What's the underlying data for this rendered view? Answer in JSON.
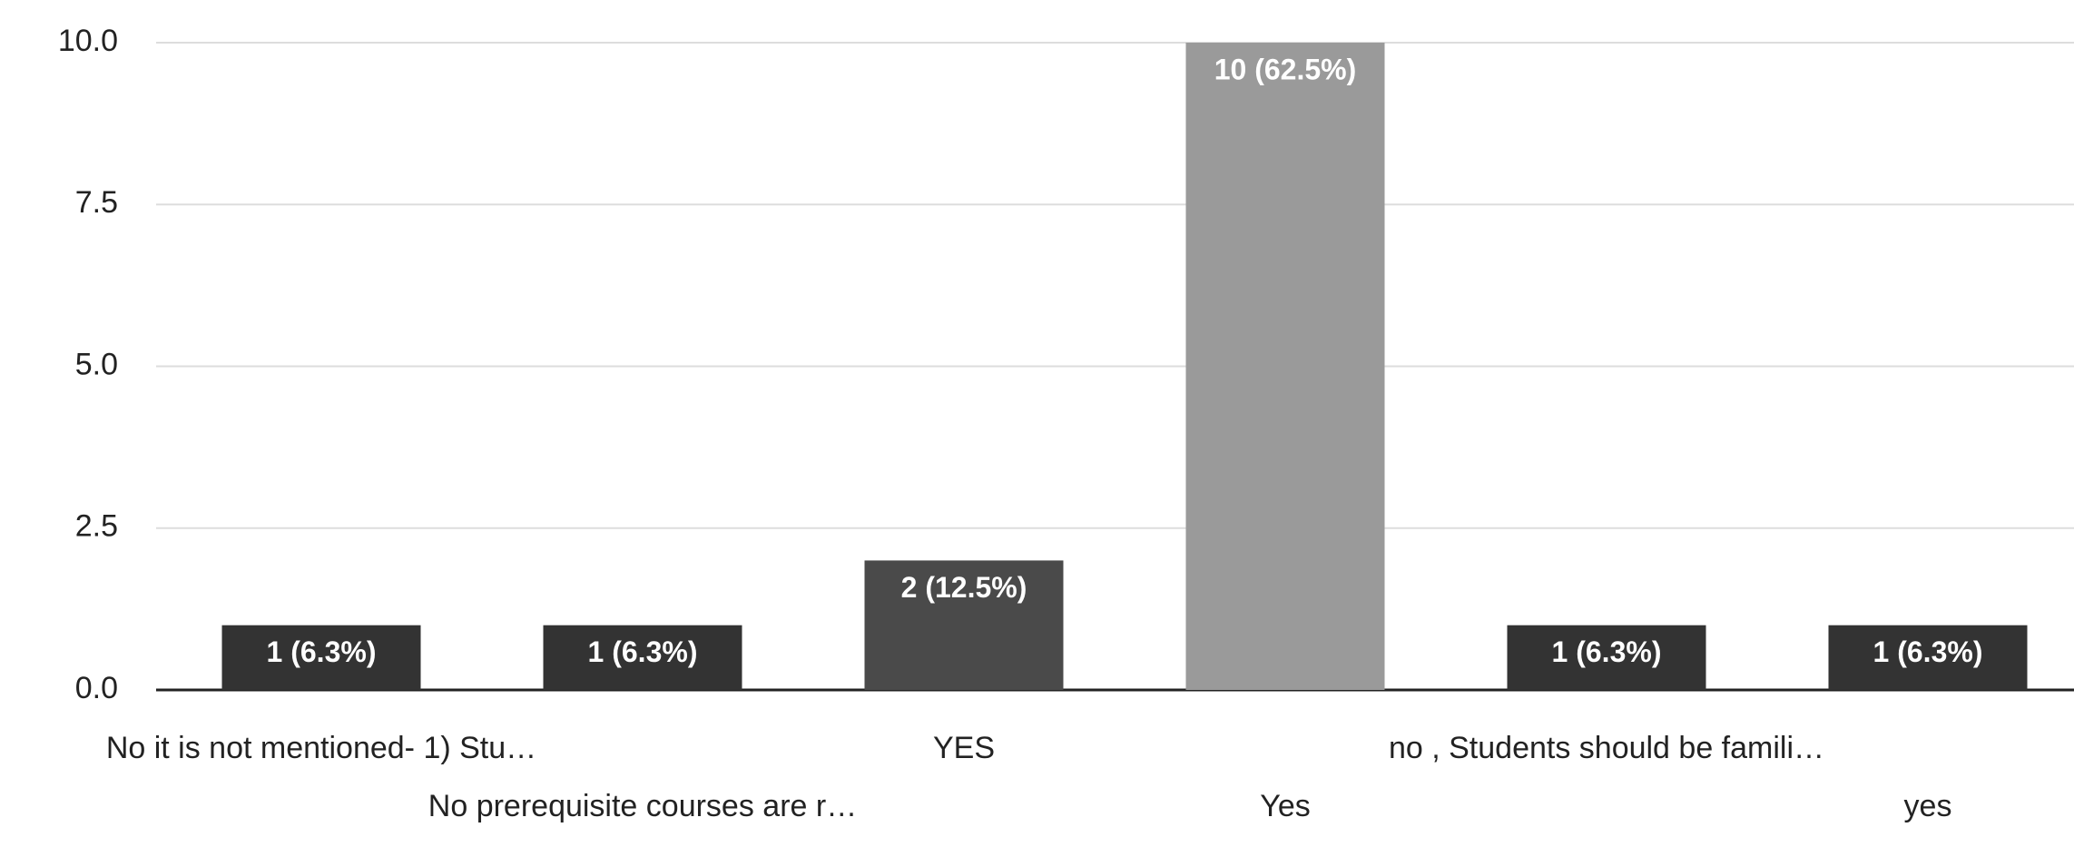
{
  "chart_data": {
    "type": "bar",
    "categories": [
      "No it is not mentioned- 1) Stu…",
      "No prerequisite courses are r…",
      "YES",
      "Yes",
      "no , Students should be famili…",
      "yes"
    ],
    "values": [
      1,
      1,
      2,
      10,
      1,
      1
    ],
    "value_labels": [
      "1 (6.3%)",
      "1 (6.3%)",
      "2 (12.5%)",
      "10 (62.5%)",
      "1 (6.3%)",
      "1 (6.3%)"
    ],
    "colors": [
      "#333333",
      "#333333",
      "#4a4a4a",
      "#9a9a9a",
      "#333333",
      "#333333"
    ],
    "ylim": [
      0,
      10
    ],
    "yticks": [
      {
        "value": 0,
        "label": "0.0"
      },
      {
        "value": 2.5,
        "label": "2.5"
      },
      {
        "value": 5,
        "label": "5.0"
      },
      {
        "value": 7.5,
        "label": "7.5"
      },
      {
        "value": 10,
        "label": "10.0"
      }
    ],
    "grid": true
  }
}
